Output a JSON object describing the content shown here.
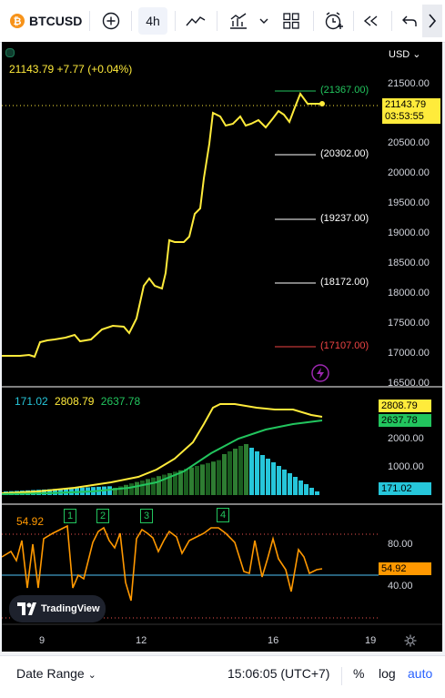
{
  "toolbar": {
    "symbol": "BTCUSD",
    "interval": "4h",
    "logo_color": "#f7931a"
  },
  "price": {
    "currency": "USD",
    "ohlc_line": "21143.79 +7.77 (+0.04%)",
    "last": "21143.79",
    "countdown": "03:53:55",
    "levels": [
      {
        "label": "(21367.00)",
        "color": "#22c55e"
      },
      {
        "label": "(20302.00)",
        "color": "#ffffff"
      },
      {
        "label": "(19237.00)",
        "color": "#ffffff"
      },
      {
        "label": "(18172.00)",
        "color": "#ffffff"
      },
      {
        "label": "(17107.00)",
        "color": "#ef4444"
      }
    ],
    "axis_ticks": [
      "21500.00",
      "21000.00",
      "20500.00",
      "20000.00",
      "19500.00",
      "19000.00",
      "18500.00",
      "18000.00",
      "17500.00",
      "17000.00",
      "16500.00"
    ]
  },
  "indicator": {
    "values": {
      "a": "171.02",
      "b": "2808.79",
      "c": "2637.78"
    },
    "colors": {
      "a": "#26c6da",
      "b": "#ffeb3b",
      "c": "#22c55e"
    },
    "axis_ticks": [
      "2000.00",
      "1000.00"
    ],
    "tags": {
      "b": "2808.79",
      "c": "2637.78",
      "a": "171.02"
    }
  },
  "rsi": {
    "value": "54.92",
    "markers": [
      "1",
      "2",
      "3",
      "4"
    ],
    "axis_ticks": [
      "80.00",
      "40.00"
    ],
    "tag": "54.92"
  },
  "time_axis": [
    "9",
    "12",
    "16",
    "19"
  ],
  "watermark": "TradingView",
  "bottom": {
    "date_range": "Date Range",
    "clock": "15:06:05 (UTC+7)",
    "percent": "%",
    "log": "log",
    "auto": "auto"
  }
}
